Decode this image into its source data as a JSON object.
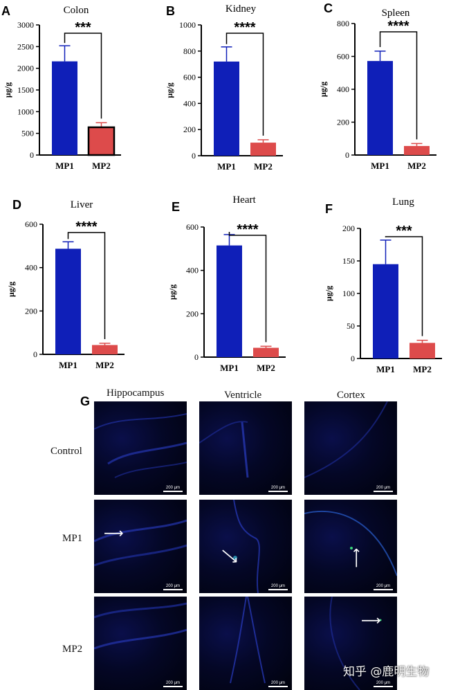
{
  "colors": {
    "mp1": "#0f1fb8",
    "mp2": "#dd4b4b",
    "mp2_outline_A": "#000000",
    "axis": "#000000"
  },
  "chart_data": [
    {
      "type": "bar",
      "letter": "A",
      "title": "Colon",
      "ylabel": "μg/g",
      "ylim": [
        0,
        3000
      ],
      "ticks": [
        0,
        500,
        1000,
        1500,
        2000,
        2500,
        3000
      ],
      "categories": [
        "MP1",
        "MP2"
      ],
      "values": [
        2160,
        640
      ],
      "errors": [
        360,
        105
      ],
      "significance": "***",
      "mp2_outlined": true
    },
    {
      "type": "bar",
      "letter": "B",
      "title": "Kidney",
      "ylabel": "μg/g",
      "ylim": [
        0,
        1000
      ],
      "ticks": [
        0,
        200,
        400,
        600,
        800,
        1000
      ],
      "categories": [
        "MP1",
        "MP2"
      ],
      "values": [
        720,
        100
      ],
      "errors": [
        112,
        22
      ],
      "significance": "****",
      "mp2_outlined": false
    },
    {
      "type": "bar",
      "letter": "C",
      "title": "Spleen",
      "ylabel": "μg/g",
      "ylim": [
        0,
        800
      ],
      "ticks": [
        0,
        200,
        400,
        600,
        800
      ],
      "categories": [
        "MP1",
        "MP2"
      ],
      "values": [
        572,
        55
      ],
      "errors": [
        60,
        15
      ],
      "significance": "****",
      "mp2_outlined": false
    },
    {
      "type": "bar",
      "letter": "D",
      "title": "Liver",
      "ylabel": "μg/g",
      "ylim": [
        0,
        600
      ],
      "ticks": [
        0,
        200,
        400,
        600
      ],
      "categories": [
        "MP1",
        "MP2"
      ],
      "values": [
        487,
        43
      ],
      "errors": [
        32,
        8
      ],
      "significance": "****",
      "mp2_outlined": false
    },
    {
      "type": "bar",
      "letter": "E",
      "title": "Heart",
      "ylabel": "μg/g",
      "ylim": [
        0,
        600
      ],
      "ticks": [
        0,
        200,
        400,
        600
      ],
      "categories": [
        "MP1",
        "MP2"
      ],
      "values": [
        515,
        43
      ],
      "errors": [
        50,
        7
      ],
      "significance": "****",
      "mp2_outlined": false
    },
    {
      "type": "bar",
      "letter": "F",
      "title": "Lung",
      "ylabel": "μg/g",
      "ylim": [
        0,
        200
      ],
      "ticks": [
        0,
        50,
        100,
        150,
        200
      ],
      "categories": [
        "MP1",
        "MP2"
      ],
      "values": [
        145,
        24
      ],
      "errors": [
        37,
        4
      ],
      "significance": "***",
      "mp2_outlined": false
    }
  ],
  "microscopy": {
    "letter": "G",
    "columns": [
      "Hippocampus",
      "Ventricle",
      "Cortex"
    ],
    "rows": [
      "Control",
      "MP1",
      "MP2"
    ],
    "scale_bar": "200 μm"
  },
  "watermark": "知乎 @鹿明生物"
}
